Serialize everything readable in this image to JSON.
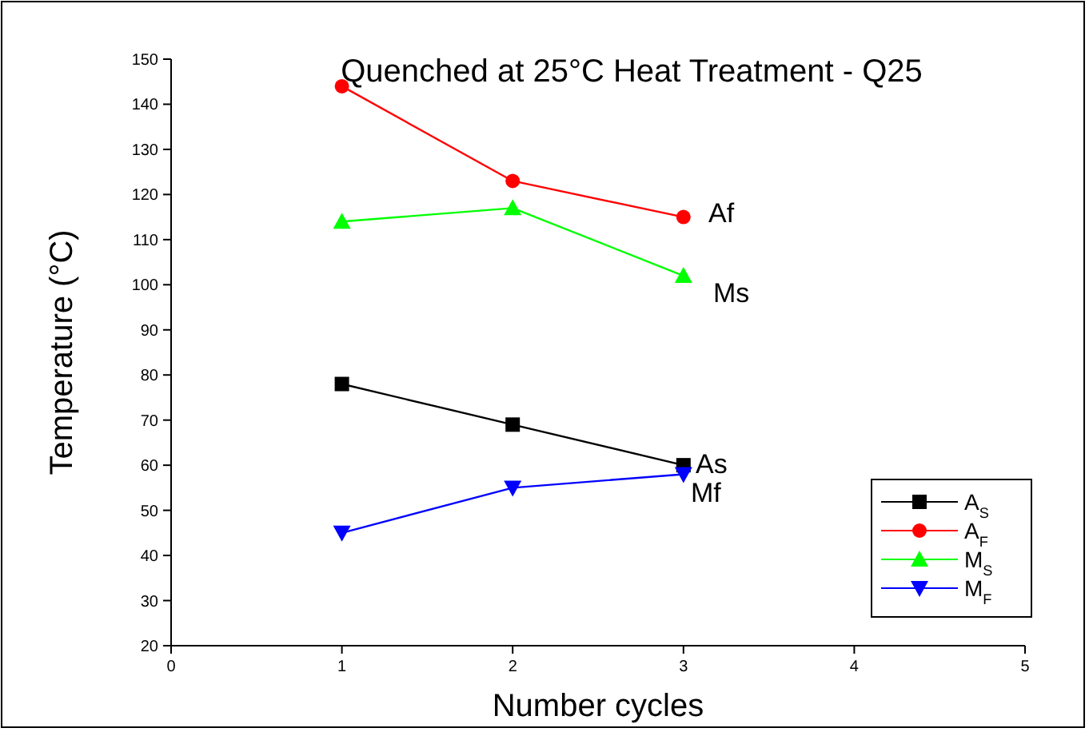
{
  "chart_data": {
    "type": "line",
    "title": "Quenched at 25°C Heat Treatment - Q25",
    "xlabel": "Number cycles",
    "ylabel": "Temperature (°C)",
    "x": [
      1,
      2,
      3
    ],
    "xlim": [
      0,
      5
    ],
    "xticks": [
      0,
      1,
      2,
      3,
      4,
      5
    ],
    "ylim": [
      20,
      150
    ],
    "yticks": [
      20,
      30,
      40,
      50,
      60,
      70,
      80,
      90,
      100,
      110,
      120,
      130,
      140,
      150
    ],
    "series": [
      {
        "name": "A$_{S}$",
        "color": "#000000",
        "marker": "square",
        "values": [
          78,
          69,
          60
        ]
      },
      {
        "name": "A$_{F}$",
        "color": "#ff0000",
        "marker": "circle",
        "values": [
          144,
          123,
          115
        ]
      },
      {
        "name": "M$_{S}$",
        "color": "#00ff00",
        "marker": "triangle",
        "values": [
          114,
          117,
          102
        ]
      },
      {
        "name": "M$_{F}$",
        "color": "#0000ff",
        "marker": "triangle-down",
        "values": [
          45,
          55,
          58
        ]
      }
    ],
    "annotations": [
      "Af",
      "Ms",
      "As",
      "Mf"
    ],
    "legend": "bottom right",
    "grid": false,
    "line_style": "solid"
  }
}
